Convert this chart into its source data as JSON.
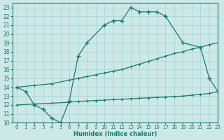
{
  "xlabel": "Humidex (Indice chaleur)",
  "xlim": [
    -0.5,
    23
  ],
  "ylim": [
    10,
    23.5
  ],
  "bg_color": "#cce8e8",
  "line_color": "#1a7a6e",
  "grid_color": "#b0d8d8",
  "line1_x": [
    0,
    1,
    2,
    3,
    4,
    5,
    6,
    7,
    8,
    10,
    11,
    12,
    13,
    14,
    15,
    16,
    17,
    19,
    21,
    22,
    23
  ],
  "line1_y": [
    14,
    13.5,
    12,
    11.5,
    10.5,
    10,
    12.5,
    17.5,
    19,
    21,
    21.5,
    21.5,
    23,
    22.5,
    22.5,
    22.5,
    22,
    19,
    18.5,
    15,
    13.5
  ],
  "line2_x": [
    0,
    2,
    4,
    6,
    7,
    8,
    9,
    10,
    11,
    12,
    13,
    14,
    15,
    16,
    17,
    18,
    19,
    20,
    21,
    22,
    23
  ],
  "line2_y": [
    14,
    14.2,
    14.4,
    14.8,
    15.0,
    15.2,
    15.4,
    15.6,
    15.8,
    16.0,
    16.3,
    16.6,
    16.9,
    17.2,
    17.5,
    17.8,
    18.0,
    18.3,
    18.5,
    18.8,
    19.0
  ],
  "line3_x": [
    0,
    2,
    4,
    6,
    7,
    8,
    9,
    10,
    11,
    12,
    13,
    14,
    15,
    16,
    17,
    18,
    19,
    20,
    21,
    22,
    23
  ],
  "line3_y": [
    12,
    12.1,
    12.2,
    12.3,
    12.4,
    12.45,
    12.5,
    12.55,
    12.6,
    12.65,
    12.7,
    12.75,
    12.8,
    12.85,
    12.9,
    12.95,
    13.0,
    13.1,
    13.2,
    13.3,
    13.5
  ],
  "yticks": [
    10,
    11,
    12,
    13,
    14,
    15,
    16,
    17,
    18,
    19,
    20,
    21,
    22,
    23
  ],
  "xticks": [
    0,
    1,
    2,
    3,
    4,
    5,
    6,
    7,
    8,
    9,
    10,
    11,
    12,
    13,
    14,
    15,
    16,
    17,
    18,
    19,
    20,
    21,
    22,
    23
  ]
}
